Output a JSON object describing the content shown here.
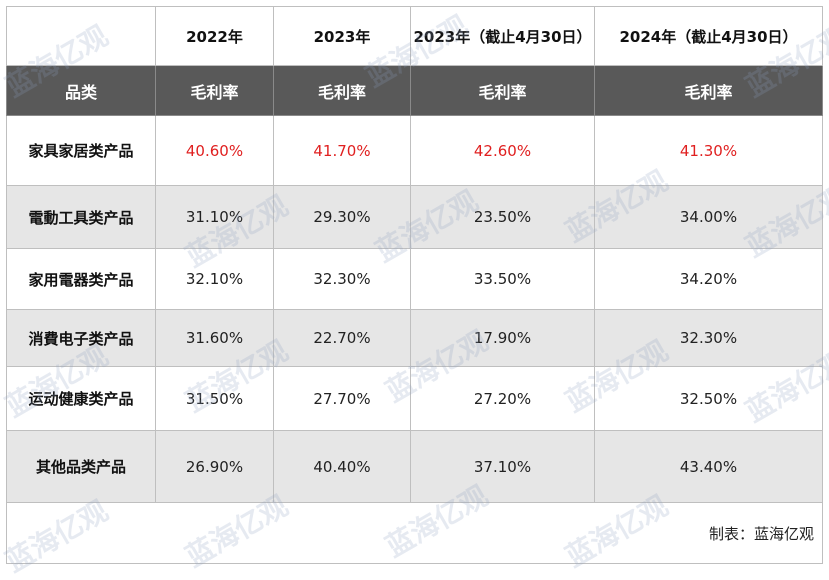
{
  "chart_data": {
    "type": "table",
    "columns": [
      {
        "year": "",
        "metric": "品类"
      },
      {
        "year": "2022年",
        "metric": "毛利率"
      },
      {
        "year": "2023年",
        "metric": "毛利率"
      },
      {
        "year": "2023年（截止4月30日）",
        "metric": "毛利率"
      },
      {
        "year": "2024年（截止4月30日）",
        "metric": "毛利率"
      }
    ],
    "rows": [
      {
        "category": "家具家居类产品",
        "values": [
          "40.60%",
          "41.70%",
          "42.60%",
          "41.30%"
        ],
        "highlight": true
      },
      {
        "category": "電動工具类产品",
        "values": [
          "31.10%",
          "29.30%",
          "23.50%",
          "34.00%"
        ]
      },
      {
        "category": "家用電器类产品",
        "values": [
          "32.10%",
          "32.30%",
          "33.50%",
          "34.20%"
        ]
      },
      {
        "category": "消費电子类产品",
        "values": [
          "31.60%",
          "22.70%",
          "17.90%",
          "32.30%"
        ]
      },
      {
        "category": "运动健康类产品",
        "values": [
          "31.50%",
          "27.70%",
          "27.20%",
          "32.50%"
        ]
      },
      {
        "category": "其他品类产品",
        "values": [
          "26.90%",
          "40.40%",
          "37.10%",
          "43.40%"
        ]
      }
    ],
    "source": "制表：蓝海亿观",
    "watermark": "蓝海亿观",
    "colors": {
      "header_bg": "#595959",
      "shade_bg": "#e6e6e6",
      "highlight_text": "#e02020"
    }
  }
}
